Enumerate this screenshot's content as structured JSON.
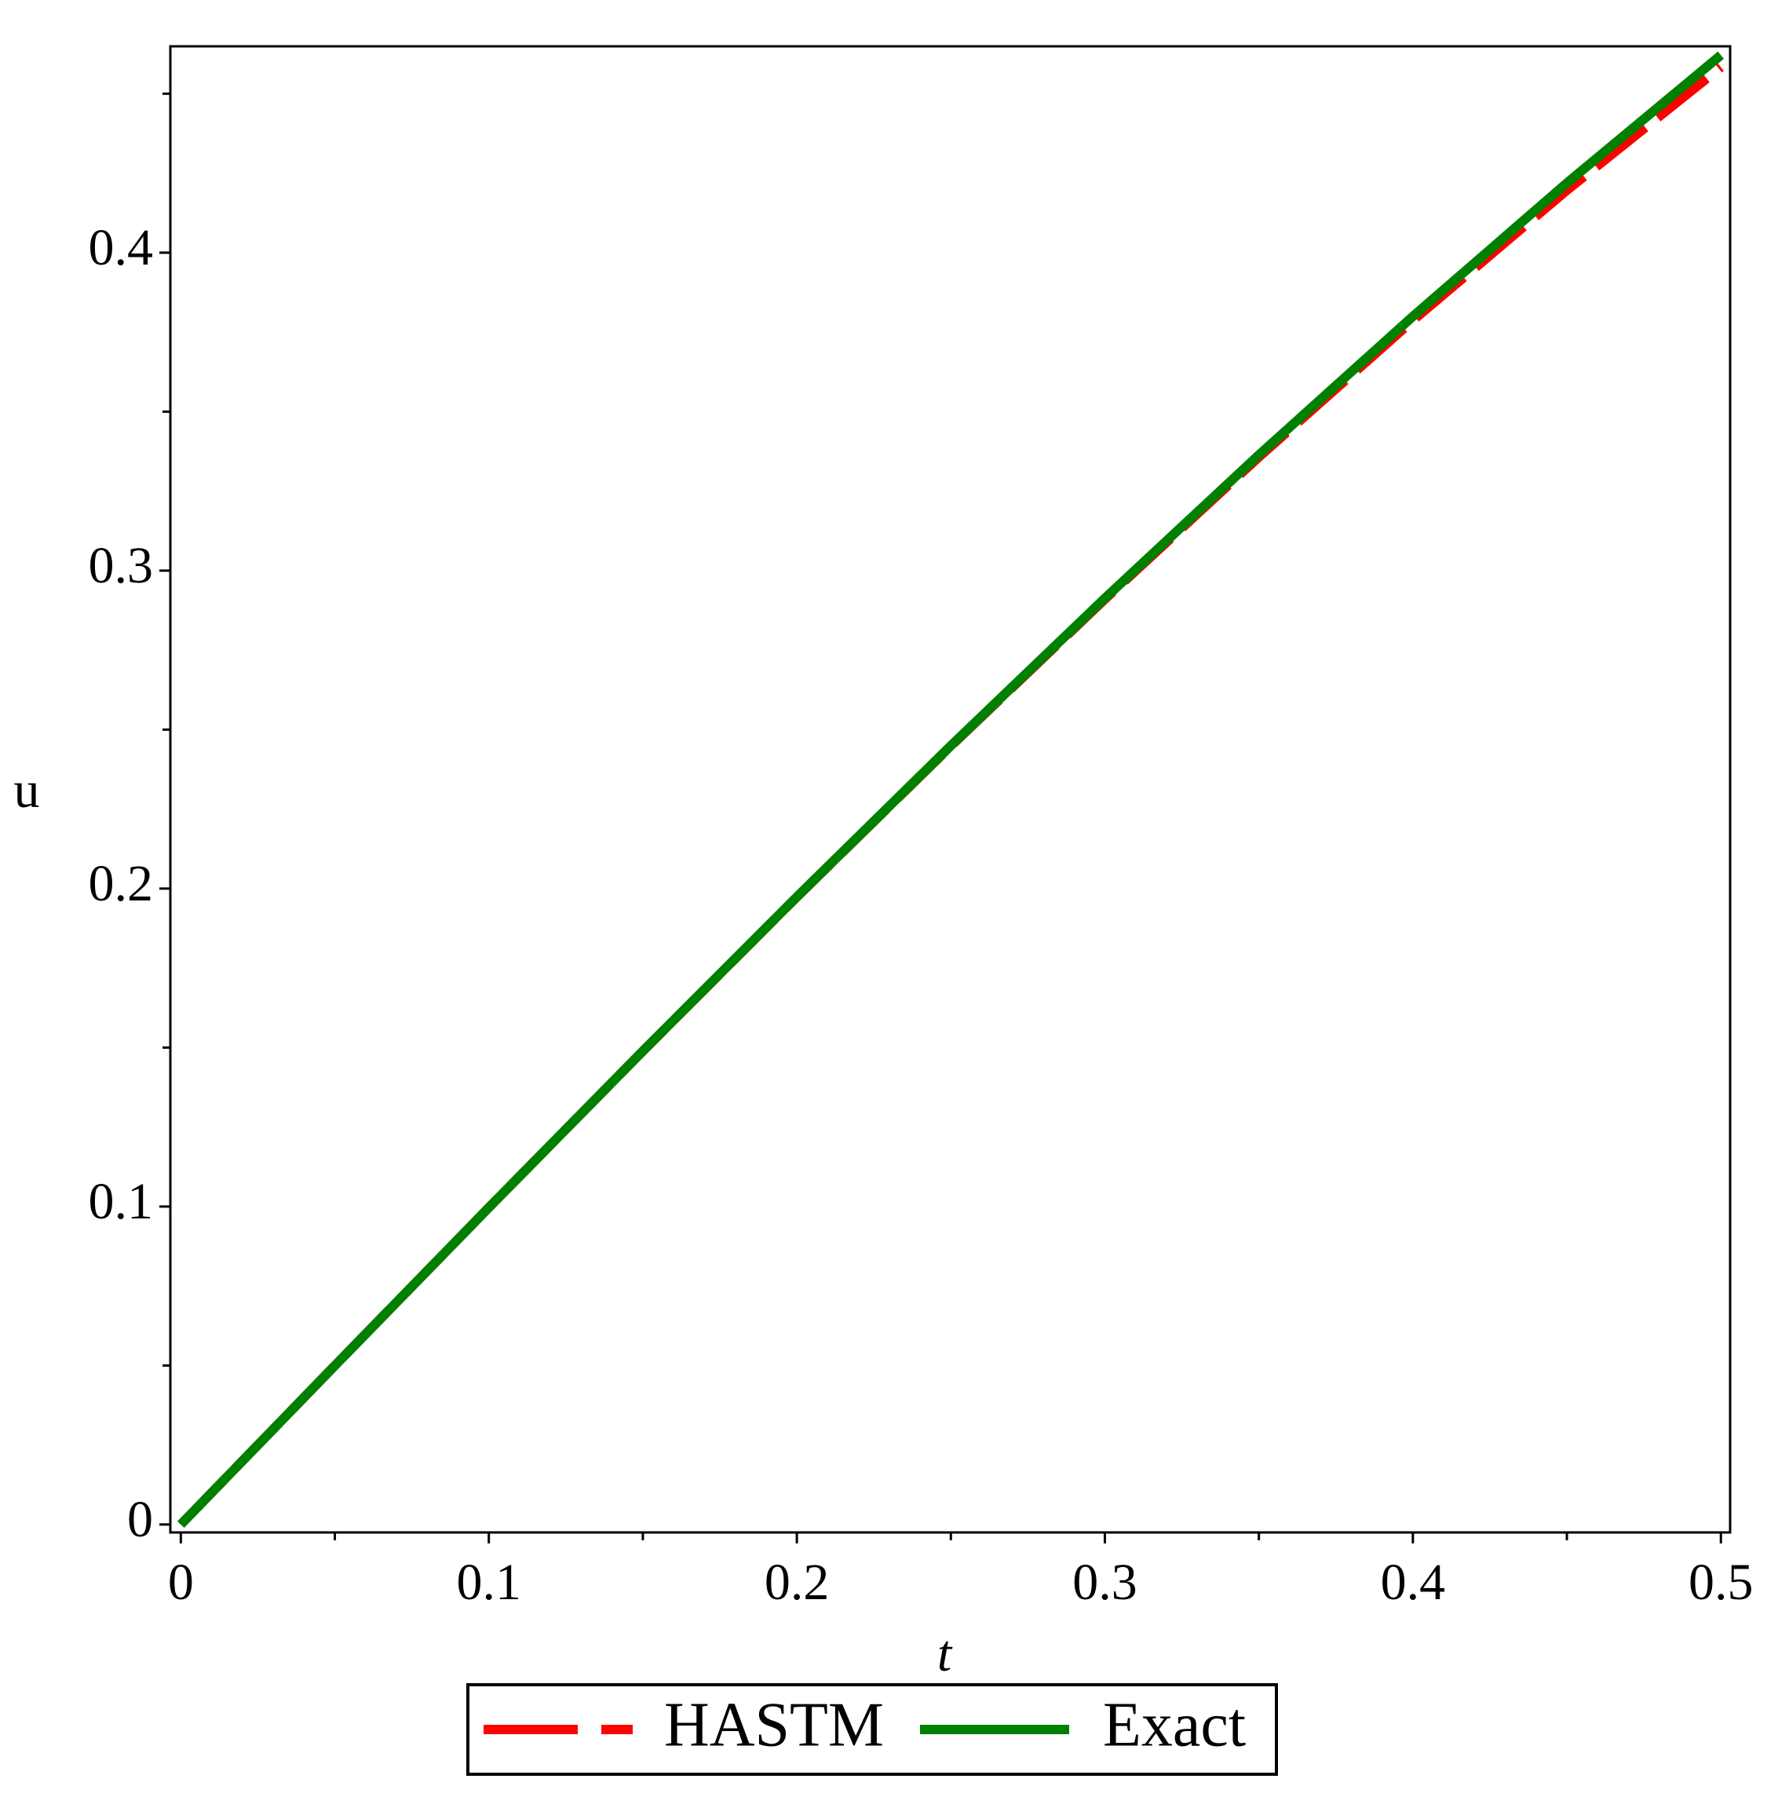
{
  "chart_data": {
    "type": "line",
    "x_label": "t",
    "y_label": "u",
    "x": [
      0,
      0.05,
      0.1,
      0.15,
      0.2,
      0.25,
      0.3,
      0.35,
      0.4,
      0.45,
      0.5
    ],
    "series": [
      {
        "name": "HASTM",
        "color": "#ff0000",
        "dash": true,
        "values": [
          0,
          0.04996,
          0.09967,
          0.14888,
          0.19733,
          0.24479,
          0.291,
          0.33571,
          0.37867,
          0.41963,
          0.45833
        ]
      },
      {
        "name": "Exact",
        "color": "#008000",
        "dash": false,
        "values": [
          0,
          0.04996,
          0.09967,
          0.14889,
          0.19738,
          0.24492,
          0.29131,
          0.33638,
          0.37995,
          0.4219,
          0.46212
        ]
      }
    ],
    "xlim": [
      -0.0034,
      0.503
    ],
    "ylim": [
      -0.0025,
      0.4649
    ],
    "xticks": [
      0,
      0.1,
      0.2,
      0.3,
      0.4,
      0.5
    ],
    "yticks": [
      0,
      0.1,
      0.2,
      0.3,
      0.4
    ],
    "xminorticks": [
      0.05,
      0.15,
      0.25,
      0.35,
      0.45
    ],
    "yminorticks": [
      0.05,
      0.15,
      0.25,
      0.35,
      0.45
    ],
    "legend": "bottom"
  }
}
